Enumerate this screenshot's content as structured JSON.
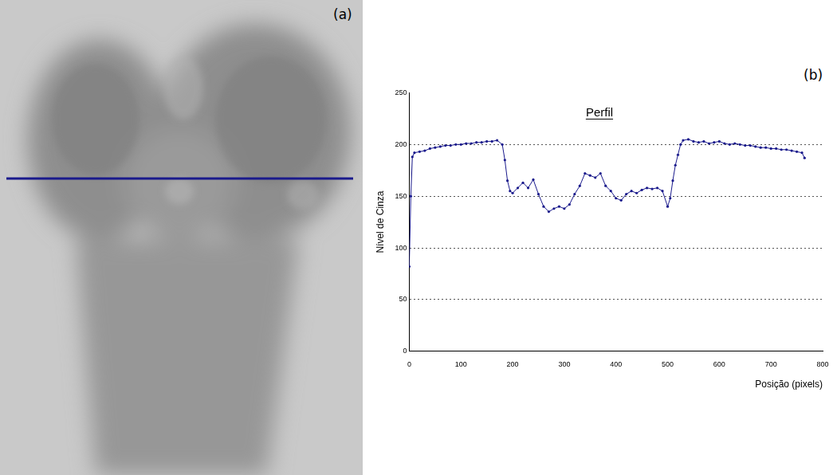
{
  "photo": {
    "panel_label": "(a)"
  },
  "chart_data": {
    "type": "line",
    "panel_label": "(b)",
    "title": "Perfil",
    "x_label": "Posição (pixels)",
    "y_label": "Nível de Cinza",
    "x": [
      0,
      3,
      6,
      10,
      20,
      30,
      40,
      50,
      60,
      70,
      80,
      90,
      100,
      110,
      120,
      130,
      140,
      150,
      160,
      170,
      180,
      185,
      190,
      195,
      200,
      210,
      220,
      230,
      240,
      250,
      260,
      270,
      280,
      290,
      300,
      310,
      320,
      330,
      340,
      350,
      360,
      370,
      380,
      390,
      400,
      410,
      420,
      430,
      440,
      450,
      460,
      470,
      480,
      490,
      500,
      505,
      510,
      515,
      520,
      525,
      530,
      540,
      550,
      560,
      570,
      580,
      590,
      600,
      610,
      620,
      630,
      640,
      650,
      660,
      670,
      680,
      690,
      700,
      710,
      720,
      730,
      740,
      750,
      760,
      765
    ],
    "series": [
      {
        "name": "Perfil",
        "color": "#1a1a8c",
        "marker": "circle",
        "line_style": "solid",
        "values": [
          82,
          150,
          188,
          192,
          193,
          194,
          196,
          197,
          198,
          199,
          199,
          200,
          200,
          201,
          201,
          202,
          202,
          203,
          203,
          204,
          200,
          185,
          165,
          155,
          153,
          158,
          163,
          158,
          166,
          152,
          140,
          135,
          138,
          140,
          138,
          142,
          152,
          160,
          172,
          170,
          168,
          172,
          160,
          155,
          148,
          146,
          152,
          155,
          153,
          156,
          158,
          157,
          158,
          155,
          140,
          148,
          165,
          180,
          190,
          200,
          204,
          205,
          203,
          202,
          203,
          201,
          202,
          203,
          201,
          200,
          201,
          200,
          199,
          199,
          198,
          197,
          197,
          196,
          196,
          195,
          195,
          194,
          193,
          192,
          187
        ]
      }
    ],
    "xlim": [
      0,
      800
    ],
    "xticks": [
      0,
      100,
      200,
      300,
      400,
      500,
      600,
      700,
      800
    ],
    "ylim": [
      0,
      250
    ],
    "yticks": [
      0,
      50,
      100,
      150,
      200,
      250
    ],
    "grid": true
  }
}
